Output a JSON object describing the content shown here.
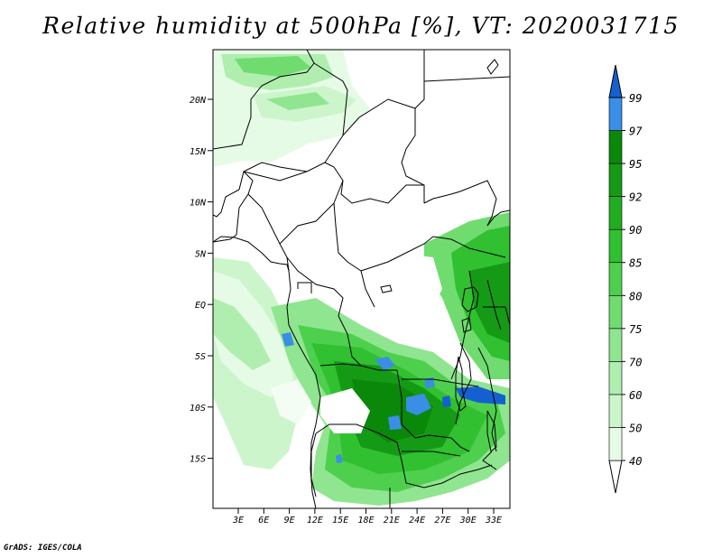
{
  "title": "Relative humidity at 500hPa [%], VT: 2020031715",
  "credit": "GrADS: IGES/COLA",
  "map": {
    "y_ticks": [
      "20N",
      "15N",
      "10N",
      "5N",
      "EQ",
      "5S",
      "10S",
      "15S"
    ],
    "x_ticks": [
      "3E",
      "6E",
      "9E",
      "12E",
      "15E",
      "18E",
      "21E",
      "24E",
      "27E",
      "30E",
      "33E"
    ]
  },
  "colorbar": {
    "levels": [
      "40",
      "50",
      "60",
      "70",
      "75",
      "80",
      "85",
      "90",
      "92",
      "95",
      "97",
      "99"
    ],
    "colors": {
      "40": "#e6fbe6",
      "50": "#ccf5cc",
      "60": "#b0eeb0",
      "70": "#90e590",
      "75": "#70dc70",
      "80": "#4ed04e",
      "85": "#30c030",
      "90": "#22ac22",
      "92": "#159a15",
      "95": "#0a880a",
      "97": "#3a8ee6",
      "99": "#1560d0"
    }
  }
}
